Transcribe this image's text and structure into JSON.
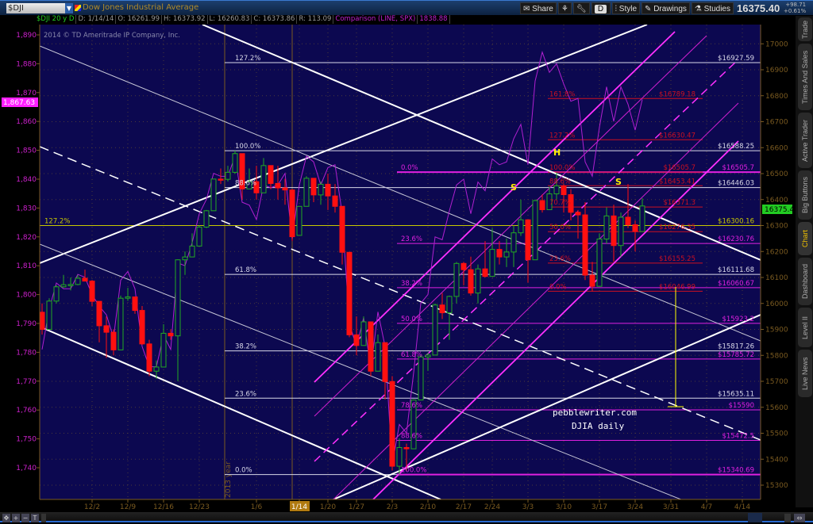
{
  "header": {
    "symbol": "$DJI",
    "description": "Dow Jones Industrial Average",
    "share": "Share",
    "style": "Style",
    "drawings": "Drawings",
    "studies": "Studies",
    "period_button": "D",
    "last": "16375.40",
    "change": "+98.71",
    "change_pct": "+0.61%"
  },
  "info": {
    "symbol_period": "$DJI 20 y D",
    "date": "D: 1/14/14",
    "open": "O: 16261.99",
    "high": "H: 16373.92",
    "low": "L: 16260.83",
    "close": "C: 16373.86",
    "range": "R: 113.09",
    "comparison": "Comparison (LINE, SPX)",
    "comparison_value": "1838.88"
  },
  "watermark": "2014 © TD Ameritrade IP Company, Inc.",
  "sidebar": {
    "tabs": [
      "Trade",
      "Times And Sales",
      "Active Trader",
      "Big Buttons",
      "Chart",
      "Dashboard",
      "Level II",
      "Live News"
    ],
    "active": "Chart"
  },
  "annotations": {
    "site": "pebblewriter.com",
    "caption": "DJIA daily",
    "head": "H",
    "shoulder_left": "S",
    "shoulder_right": "S",
    "year_marker": "2013 year"
  },
  "colors": {
    "background": "#0c0850",
    "up": "#22aa22",
    "down": "#ff1010",
    "comparison": "#b020d0",
    "fib_white": "#d8d8e8",
    "fib_magenta": "#e020e0",
    "fib_red": "#cc1020",
    "fib_yellow": "#c8c800"
  },
  "chart_data": {
    "type": "candlestick",
    "title": "",
    "right_axis": {
      "ticks": [
        15300,
        15400,
        15500,
        15600,
        15700,
        15800,
        15900,
        16000,
        16100,
        16200,
        16300,
        16400,
        16500,
        16600,
        16700,
        16800,
        16900,
        17000
      ],
      "current": "16375.4"
    },
    "left_axis": {
      "ticks": [
        "1,740",
        "1,750",
        "1,760",
        "1,770",
        "1,780",
        "1,790",
        "1,800",
        "1,810",
        "1,820",
        "1,830",
        "1,840",
        "1,850",
        "1,860",
        "1,870",
        "1,880",
        "1,890"
      ],
      "current": "1,867.63"
    },
    "x_ticks": [
      "12/2",
      "12/9",
      "12/16",
      "12/23",
      "1/6",
      "1/14",
      "1/20",
      "1/27",
      "2/3",
      "2/10",
      "2/17",
      "2/24",
      "3/3",
      "3/10",
      "3/17",
      "3/24",
      "3/31",
      "4/7",
      "4/14"
    ],
    "x_tick_dates": [
      "2013-12-02",
      "2013-12-09",
      "2013-12-16",
      "2013-12-23",
      "2014-01-06",
      "2014-01-14",
      "2014-01-20",
      "2014-01-27",
      "2014-02-03",
      "2014-02-10",
      "2014-02-17",
      "2014-02-24",
      "2014-03-03",
      "2014-03-10",
      "2014-03-17",
      "2014-03-24",
      "2014-03-31",
      "2014-04-07",
      "2014-04-14"
    ],
    "highlighted_date": "1/14",
    "candles": [
      [
        "2013-11-20",
        15966,
        16000,
        15880,
        15900
      ],
      [
        "2013-11-21",
        15900,
        16020,
        15900,
        16009
      ],
      [
        "2013-11-22",
        16009,
        16070,
        16000,
        16064
      ],
      [
        "2013-11-25",
        16064,
        16110,
        16060,
        16072
      ],
      [
        "2013-11-26",
        16072,
        16100,
        16050,
        16073
      ],
      [
        "2013-11-27",
        16073,
        16110,
        16070,
        16097
      ],
      [
        "2013-11-29",
        16097,
        16130,
        16085,
        16086
      ],
      [
        "2013-12-02",
        16086,
        16090,
        15990,
        16008
      ],
      [
        "2013-12-03",
        16008,
        16008,
        15850,
        15914
      ],
      [
        "2013-12-04",
        15914,
        15950,
        15790,
        15889
      ],
      [
        "2013-12-05",
        15889,
        15900,
        15800,
        15821
      ],
      [
        "2013-12-06",
        15821,
        16030,
        15821,
        16020
      ],
      [
        "2013-12-09",
        16020,
        16060,
        16010,
        16025
      ],
      [
        "2013-12-10",
        16025,
        16025,
        15960,
        15973
      ],
      [
        "2013-12-11",
        15973,
        15990,
        15840,
        15844
      ],
      [
        "2013-12-12",
        15844,
        15860,
        15720,
        15739
      ],
      [
        "2013-12-13",
        15739,
        15780,
        15710,
        15755
      ],
      [
        "2013-12-16",
        15755,
        15920,
        15755,
        15885
      ],
      [
        "2013-12-17",
        15885,
        15900,
        15860,
        15875
      ],
      [
        "2013-12-18",
        15875,
        16170,
        15700,
        16168
      ],
      [
        "2013-12-19",
        16168,
        16200,
        16110,
        16179
      ],
      [
        "2013-12-20",
        16179,
        16270,
        16179,
        16221
      ],
      [
        "2013-12-23",
        16221,
        16300,
        16221,
        16294
      ],
      [
        "2013-12-24",
        16294,
        16360,
        16290,
        16357
      ],
      [
        "2013-12-26",
        16357,
        16480,
        16357,
        16479
      ],
      [
        "2013-12-27",
        16479,
        16520,
        16460,
        16478
      ],
      [
        "2013-12-30",
        16478,
        16530,
        16470,
        16505
      ],
      [
        "2013-12-31",
        16505,
        16588,
        16500,
        16577
      ],
      [
        "2014-01-02",
        16577,
        16577,
        16400,
        16441
      ],
      [
        "2014-01-03",
        16441,
        16520,
        16440,
        16469
      ],
      [
        "2014-01-06",
        16469,
        16530,
        16400,
        16426
      ],
      [
        "2014-01-07",
        16426,
        16560,
        16426,
        16531
      ],
      [
        "2014-01-08",
        16531,
        16531,
        16440,
        16462
      ],
      [
        "2014-01-09",
        16462,
        16530,
        16400,
        16445
      ],
      [
        "2014-01-10",
        16445,
        16480,
        16380,
        16437
      ],
      [
        "2014-01-13",
        16437,
        16440,
        16240,
        16257
      ],
      [
        "2014-01-14",
        16261.99,
        16373.92,
        16260.83,
        16373.86
      ],
      [
        "2014-01-15",
        16374,
        16490,
        16374,
        16482
      ],
      [
        "2014-01-16",
        16482,
        16482,
        16390,
        16418
      ],
      [
        "2014-01-17",
        16418,
        16470,
        16380,
        16459
      ],
      [
        "2014-01-21",
        16459,
        16500,
        16360,
        16414
      ],
      [
        "2014-01-22",
        16414,
        16460,
        16350,
        16374
      ],
      [
        "2014-01-23",
        16374,
        16374,
        16150,
        16197
      ],
      [
        "2014-01-24",
        16197,
        16197,
        15870,
        15879
      ],
      [
        "2014-01-27",
        15879,
        15950,
        15800,
        15838
      ],
      [
        "2014-01-28",
        15838,
        15950,
        15838,
        15929
      ],
      [
        "2014-01-29",
        15929,
        15929,
        15720,
        15739
      ],
      [
        "2014-01-30",
        15739,
        15880,
        15739,
        15849
      ],
      [
        "2014-01-31",
        15849,
        15849,
        15630,
        15699
      ],
      [
        "2014-02-03",
        15699,
        15720,
        15356,
        15373
      ],
      [
        "2014-02-04",
        15373,
        15480,
        15340,
        15445
      ],
      [
        "2014-02-05",
        15445,
        15460,
        15356,
        15440
      ],
      [
        "2014-02-06",
        15440,
        15630,
        15440,
        15628
      ],
      [
        "2014-02-07",
        15628,
        15800,
        15628,
        15794
      ],
      [
        "2014-02-10",
        15794,
        15810,
        15740,
        15801
      ],
      [
        "2014-02-11",
        15801,
        16000,
        15801,
        15994
      ],
      [
        "2014-02-12",
        15994,
        16040,
        15940,
        15964
      ],
      [
        "2014-02-13",
        15964,
        16030,
        15860,
        16027
      ],
      [
        "2014-02-14",
        16027,
        16160,
        16000,
        16154
      ],
      [
        "2014-02-18",
        16154,
        16160,
        16070,
        16130
      ],
      [
        "2014-02-19",
        16130,
        16180,
        16030,
        16040
      ],
      [
        "2014-02-20",
        16040,
        16150,
        16000,
        16133
      ],
      [
        "2014-02-21",
        16133,
        16240,
        16100,
        16104
      ],
      [
        "2014-02-24",
        16104,
        16290,
        16104,
        16208
      ],
      [
        "2014-02-25",
        16208,
        16240,
        16150,
        16179
      ],
      [
        "2014-02-26",
        16179,
        16250,
        16140,
        16198
      ],
      [
        "2014-02-27",
        16198,
        16300,
        16140,
        16272
      ],
      [
        "2014-02-28",
        16272,
        16400,
        16260,
        16322
      ],
      [
        "2014-03-03",
        16322,
        16322,
        16080,
        16168
      ],
      [
        "2014-03-04",
        16168,
        16400,
        16168,
        16396
      ],
      [
        "2014-03-05",
        16396,
        16420,
        16350,
        16361
      ],
      [
        "2014-03-06",
        16361,
        16450,
        16361,
        16422
      ],
      [
        "2014-03-07",
        16422,
        16505,
        16400,
        16453
      ],
      [
        "2014-03-10",
        16453,
        16460,
        16350,
        16419
      ],
      [
        "2014-03-11",
        16419,
        16440,
        16320,
        16351
      ],
      [
        "2014-03-12",
        16351,
        16360,
        16250,
        16341
      ],
      [
        "2014-03-13",
        16341,
        16390,
        16090,
        16109
      ],
      [
        "2014-03-14",
        16109,
        16160,
        16046,
        16066
      ],
      [
        "2014-03-17",
        16066,
        16270,
        16066,
        16248
      ],
      [
        "2014-03-18",
        16248,
        16370,
        16230,
        16337
      ],
      [
        "2014-03-19",
        16337,
        16380,
        16160,
        16223
      ],
      [
        "2014-03-20",
        16223,
        16350,
        16180,
        16332
      ],
      [
        "2014-03-21",
        16332,
        16460,
        16290,
        16303
      ],
      [
        "2014-03-24",
        16303,
        16320,
        16200,
        16277
      ],
      [
        "2014-03-25",
        16277,
        16405,
        16277,
        16375.4
      ]
    ],
    "comparison_spx": [
      1781,
      1795,
      1804,
      1802,
      1802,
      1807,
      1806,
      1800,
      1796,
      1793,
      1785,
      1805,
      1808,
      1802,
      1782,
      1775,
      1775,
      1786,
      1781,
      1811,
      1810,
      1818,
      1828,
      1833,
      1842,
      1841,
      1841,
      1848,
      1832,
      1831,
      1826,
      1838,
      1837,
      1838,
      1842,
      1819,
      1838,
      1848,
      1846,
      1838,
      1844,
      1845,
      1828,
      1790,
      1782,
      1792,
      1774,
      1794,
      1782,
      1741,
      1755,
      1752,
      1773,
      1797,
      1800,
      1820,
      1819,
      1829,
      1838,
      1840,
      1828,
      1839,
      1836,
      1847,
      1845,
      1846,
      1854,
      1859,
      1845,
      1874,
      1884,
      1877,
      1880,
      1873,
      1867,
      1868,
      1846,
      1841,
      1858,
      1872,
      1860,
      1872,
      1866,
      1857,
      1867.63
    ],
    "fib_levels": [
      {
        "group": "yellow",
        "level": "127.2%",
        "price": 16300.16,
        "price_label": "$16300.16"
      },
      {
        "group": "white",
        "level": "127.2%",
        "price": 16927.59,
        "price_label": "$16927.59"
      },
      {
        "group": "white",
        "level": "100.0%",
        "price": 16588.25,
        "price_label": "$16588.25"
      },
      {
        "group": "white",
        "level": "88.6%",
        "price": 16446.03,
        "price_label": "$16446.03"
      },
      {
        "group": "white",
        "level": "61.8%",
        "price": 16111.68,
        "price_label": "$16111.68"
      },
      {
        "group": "white",
        "level": "38.2%",
        "price": 15817.26,
        "price_label": "$15817.26"
      },
      {
        "group": "white",
        "level": "23.6%",
        "price": 15635.11,
        "price_label": "$15635.11"
      },
      {
        "group": "white",
        "level": "0.0%",
        "price": 15340.69,
        "price_label": ""
      },
      {
        "group": "magenta",
        "level": "0.0%",
        "price": 16505.7,
        "price_label": "$16505.7"
      },
      {
        "group": "magenta",
        "level": "23.6%",
        "price": 16230.76,
        "price_label": "$16230.76"
      },
      {
        "group": "magenta",
        "level": "38.2%",
        "price": 16060.67,
        "price_label": "$16060.67"
      },
      {
        "group": "magenta",
        "level": "50.0%",
        "price": 15923.2,
        "price_label": "$15923.2"
      },
      {
        "group": "magenta",
        "level": "61.8%",
        "price": 15785.72,
        "price_label": "$15785.72"
      },
      {
        "group": "magenta",
        "level": "78.6%",
        "price": 15590,
        "price_label": "$15590"
      },
      {
        "group": "magenta",
        "level": "88.6%",
        "price": 15472.5,
        "price_label": "$15472.5"
      },
      {
        "group": "magenta",
        "level": "100.0%",
        "price": 15340.69,
        "price_label": "$15340.69"
      },
      {
        "group": "red",
        "level": "161.8%",
        "price": 16789.18,
        "price_label": "$16789.18"
      },
      {
        "group": "red",
        "level": "127.2%",
        "price": 16630.47,
        "price_label": "$16630.47"
      },
      {
        "group": "red",
        "level": "100.0%",
        "price": 16505.7,
        "price_label": "$16505.7"
      },
      {
        "group": "red",
        "level": "88.6%",
        "price": 16453.41,
        "price_label": "$16453.41"
      },
      {
        "group": "red",
        "level": "70.7%",
        "price": 16371.3,
        "price_label": "$16371.3"
      },
      {
        "group": "red",
        "level": "50.0%",
        "price": 16276.35,
        "price_label": "$16276.35"
      },
      {
        "group": "red",
        "level": "23.6%",
        "price": 16155.25,
        "price_label": "$16155.25"
      },
      {
        "group": "red",
        "level": "0.0%",
        "price": 16046.99,
        "price_label": "$16046.99"
      }
    ]
  }
}
